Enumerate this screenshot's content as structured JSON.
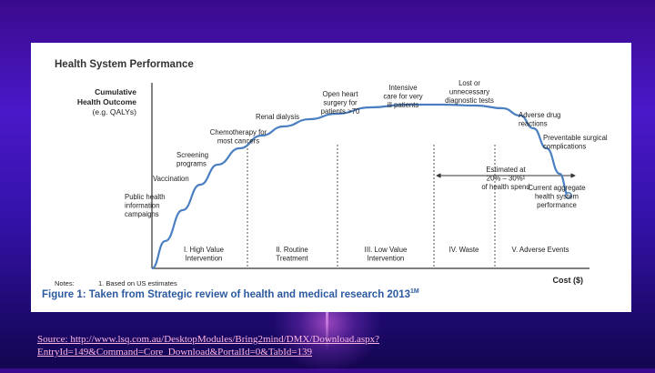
{
  "panel": {
    "title": "Health System Performance",
    "notes_label": "Notes:",
    "notes_item": "1. Based on US estimates",
    "caption": "Figure 1: Taken from Strategic review of health and medical research 2013",
    "caption_mark": "1M"
  },
  "source": {
    "text": "Source:  http://www.lsq.com.au/DesktopModules/Bring2mind/DMX/Download.aspx?EntryId=149&Command=Core_Download&PortalId=0&TabId=139"
  },
  "colors": {
    "curve": "#4a7fc1",
    "caption": "#2c5aa0",
    "source_link": "#ffb6e6"
  },
  "chart_data": {
    "type": "line",
    "title": "Health System Performance",
    "ylabel": [
      "Cumulative",
      "Health Outcome",
      "(e.g. QALYs)"
    ],
    "xlabel": "Cost ($)",
    "x": [
      0,
      3,
      7,
      11,
      15,
      20,
      25,
      30,
      36,
      42,
      50,
      58,
      66,
      74,
      80,
      84,
      87,
      90,
      93,
      95
    ],
    "y": [
      0,
      15,
      32,
      46,
      57,
      66,
      73,
      78,
      82,
      85,
      88.5,
      90,
      90,
      89.5,
      88,
      84,
      77,
      66,
      52,
      40
    ],
    "xlim": [
      0,
      100
    ],
    "ylim": [
      0,
      100
    ],
    "grid": false,
    "annotations": [
      {
        "text": [
          "Public health",
          "information",
          "campaigns"
        ],
        "x": 4,
        "y": 26
      },
      {
        "text": [
          "Vaccination"
        ],
        "x": 8,
        "y": 43
      },
      {
        "text": [
          "Screening",
          "programs"
        ],
        "x": 13,
        "y": 61
      },
      {
        "text": [
          "Chemotherapy for",
          "most cancers"
        ],
        "x": 21,
        "y": 82
      },
      {
        "text": [
          "Renal dialysis"
        ],
        "x": 31,
        "y": 89
      },
      {
        "text": [
          "Open heart",
          "surgery for",
          "patients >70"
        ],
        "x": 43,
        "y": 103
      },
      {
        "text": [
          "Intensive",
          "care for very",
          "ill patients"
        ],
        "x": 58,
        "y": 107
      },
      {
        "text": [
          "Lost or",
          "unnecessary",
          "diagnostic tests"
        ],
        "x": 72,
        "y": 110
      },
      {
        "text": [
          "Adverse drug",
          "reactions"
        ],
        "x": 86,
        "y": 86
      },
      {
        "text": [
          "Preventable surgical",
          "complications"
        ],
        "x": 92,
        "y": 73
      },
      {
        "text": [
          "Estimated at",
          "20% – 30%¹",
          "of health spend"
        ],
        "x": 71,
        "y": 46
      },
      {
        "text": [
          "Current aggregate",
          "health system",
          "performance"
        ],
        "x": 93,
        "y": 26
      }
    ],
    "phases": [
      {
        "label": [
          "I. High Value",
          "Intervention"
        ]
      },
      {
        "label": [
          "II. Routine",
          "Treatment"
        ]
      },
      {
        "label": [
          "III. Low Value",
          "Intervention"
        ]
      },
      {
        "label": [
          "IV. Waste"
        ]
      },
      {
        "label": [
          "V. Adverse Events"
        ]
      }
    ]
  }
}
